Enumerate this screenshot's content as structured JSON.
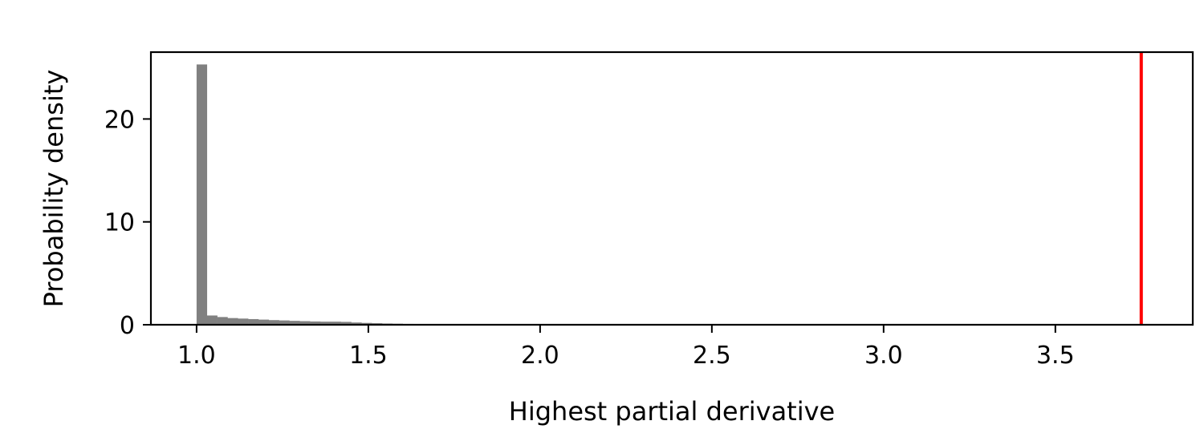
{
  "chart_data": {
    "type": "bar",
    "title": "",
    "xlabel": "Highest partial derivative",
    "ylabel": "Probability density",
    "xlim": [
      0.867,
      3.9
    ],
    "ylim": [
      0,
      26.5
    ],
    "x_ticks": [
      1.0,
      1.5,
      2.0,
      2.5,
      3.0,
      3.5
    ],
    "x_tick_labels": [
      "1.0",
      "1.5",
      "2.0",
      "2.5",
      "3.0",
      "3.5"
    ],
    "y_ticks": [
      0,
      10,
      20
    ],
    "y_tick_labels": [
      "0",
      "10",
      "20"
    ],
    "grid": false,
    "histogram": {
      "color": "#808080",
      "bin_edges": [
        1.0,
        1.03,
        1.06,
        1.09,
        1.12,
        1.15,
        1.18,
        1.21,
        1.24,
        1.27,
        1.3,
        1.33,
        1.36,
        1.39,
        1.42,
        1.45,
        1.48,
        1.51,
        1.54,
        1.57,
        1.6,
        1.63,
        1.66,
        1.69,
        1.72,
        1.75
      ],
      "densities": [
        25.3,
        0.9,
        0.75,
        0.65,
        0.6,
        0.55,
        0.5,
        0.45,
        0.42,
        0.38,
        0.35,
        0.32,
        0.3,
        0.3,
        0.28,
        0.22,
        0.18,
        0.15,
        0.12,
        0.1,
        0.08,
        0.07,
        0.06,
        0.05,
        0.04
      ]
    },
    "reference_line": {
      "x": 3.75,
      "color": "#ff0000"
    }
  }
}
